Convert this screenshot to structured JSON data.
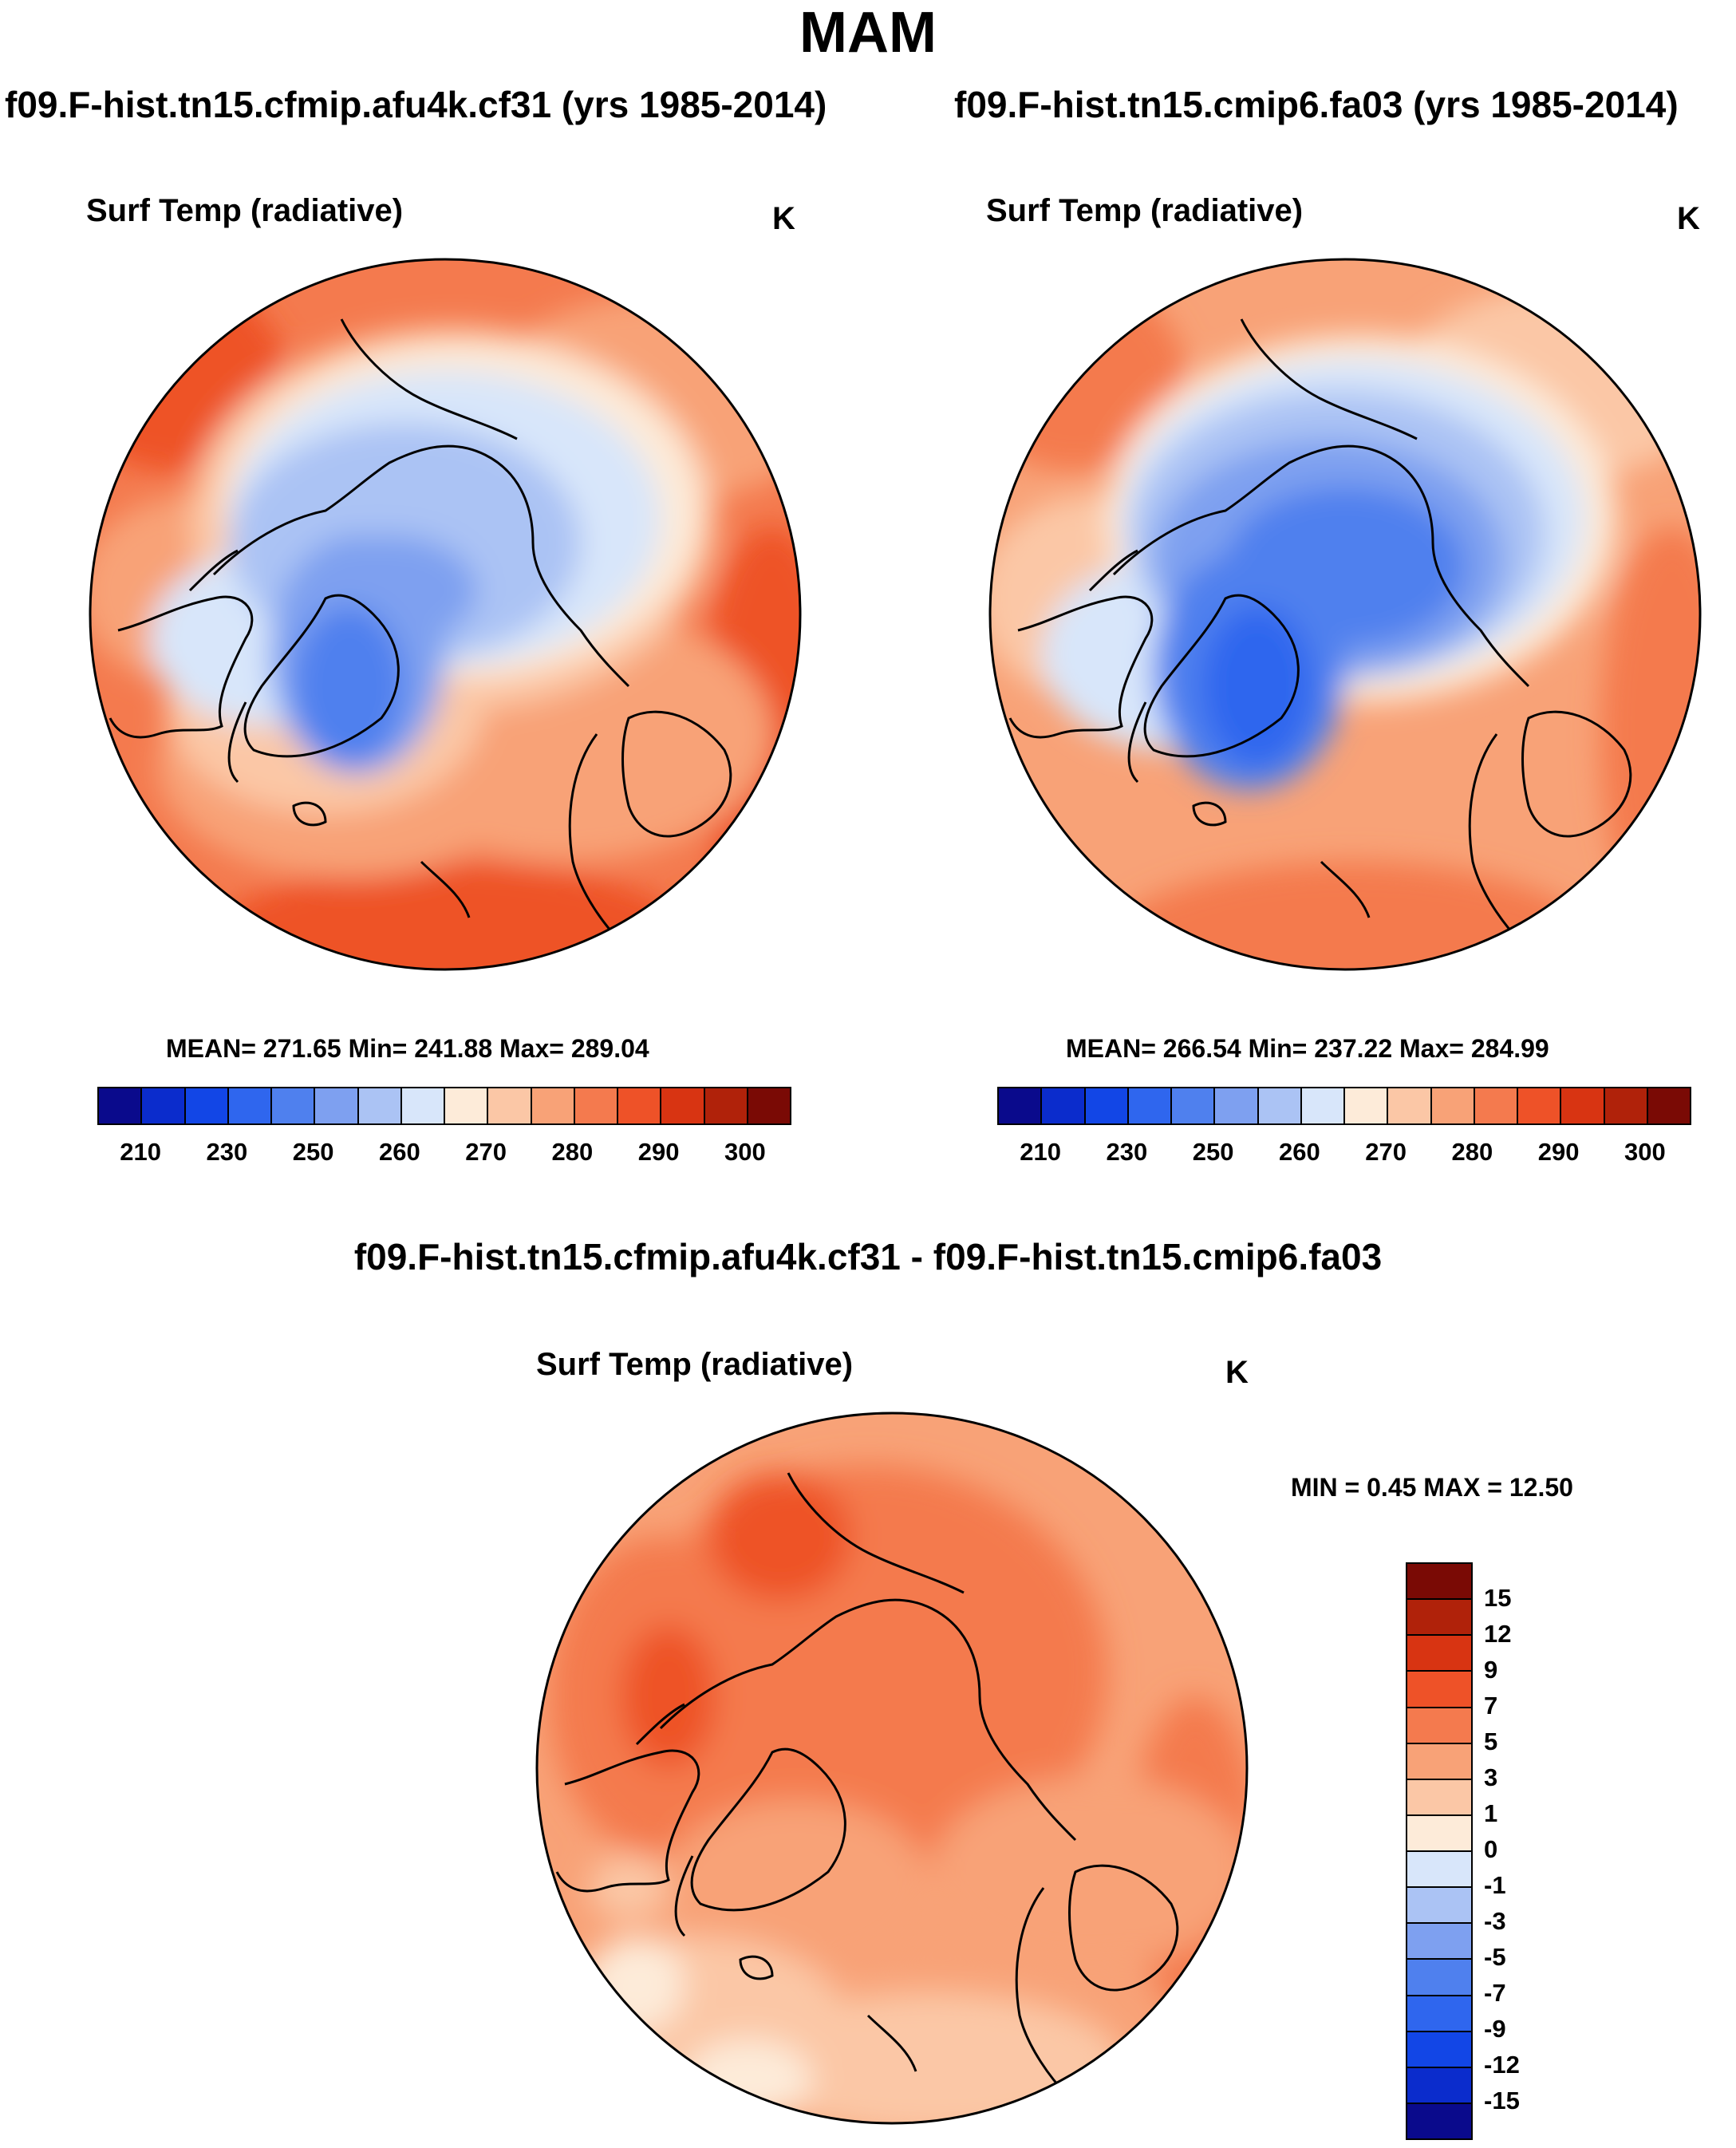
{
  "title": "MAM",
  "panels": [
    {
      "case": "f09.F-hist.tn15.cfmip.afu4k.cf31 (yrs 1985-2014)",
      "variable": "Surf Temp (radiative)",
      "unit": "K",
      "stats": "MEAN= 271.65  Min= 241.88  Max= 289.04",
      "tick_labels": [
        "210",
        "230",
        "250",
        "260",
        "270",
        "280",
        "290",
        "300"
      ]
    },
    {
      "case": "f09.F-hist.tn15.cmip6.fa03 (yrs 1985-2014)",
      "variable": "Surf Temp (radiative)",
      "unit": "K",
      "stats": "MEAN= 266.54  Min= 237.22  Max= 284.99",
      "tick_labels": [
        "210",
        "230",
        "250",
        "260",
        "270",
        "280",
        "290",
        "300"
      ]
    }
  ],
  "difference": {
    "title": "f09.F-hist.tn15.cfmip.afu4k.cf31 - f09.F-hist.tn15.cmip6.fa03",
    "variable": "Surf Temp (radiative)",
    "unit": "K",
    "stats": "MIN =   0.45 MAX =  12.50",
    "tick_labels": [
      "15",
      "12",
      "9",
      "7",
      "5",
      "3",
      "1",
      "0",
      "-1",
      "-3",
      "-5",
      "-7",
      "-9",
      "-12",
      "-15"
    ]
  },
  "abs_colors": [
    "#0a0a8c",
    "#0b2ccc",
    "#1246e6",
    "#2f66ee",
    "#4f80ee",
    "#7ea0f0",
    "#abc3f4",
    "#d8e6fa",
    "#fdebd9",
    "#fbc7a6",
    "#f8a277",
    "#f47a4e",
    "#ee5228",
    "#d83412",
    "#b0220a",
    "#7a0a05"
  ],
  "diff_colors": [
    "#7a0a05",
    "#b0220a",
    "#d83412",
    "#ee5228",
    "#f47a4e",
    "#f8a277",
    "#fbc7a6",
    "#fdebd9",
    "#d8e6fa",
    "#abc3f4",
    "#7ea0f0",
    "#4f80ee",
    "#2f66ee",
    "#1246e6",
    "#0b2ccc",
    "#0a0a8c"
  ]
}
